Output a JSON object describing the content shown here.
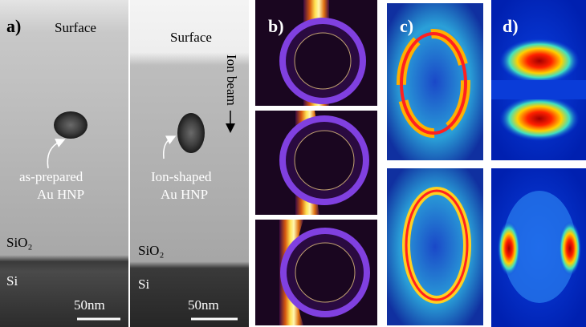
{
  "panels": {
    "a": {
      "label": "a)",
      "left": {
        "surface": "Surface",
        "particle_label": [
          "as-prepared",
          "Au HNP"
        ],
        "layer": "SiO₂",
        "substrate": "Si",
        "scale": "50nm"
      },
      "right": {
        "surface": "Surface",
        "beam": "Ion beam",
        "particle_label": [
          "Ion-shaped",
          "Au HNP"
        ],
        "layer": "SiO₂",
        "substrate": "Si",
        "scale": "50nm"
      }
    },
    "b": {
      "label": "b)"
    },
    "c": {
      "label": "c)"
    },
    "d": {
      "label": "d)"
    }
  }
}
